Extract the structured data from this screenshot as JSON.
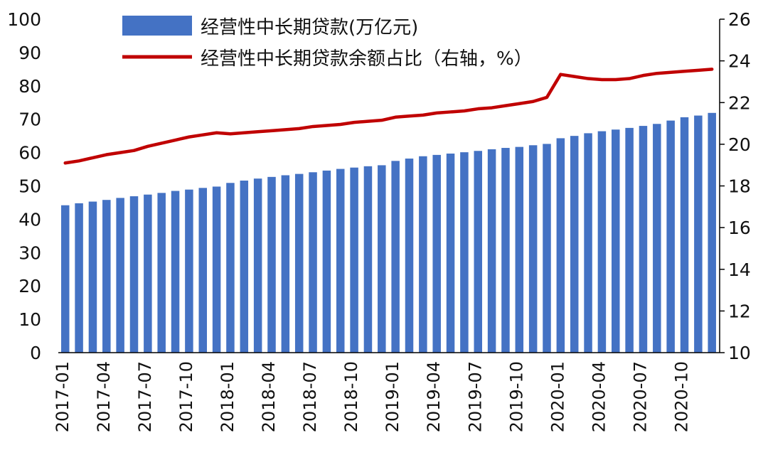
{
  "chart_data": {
    "type": "bar+line",
    "colors": {
      "bar": "#4472C4",
      "line": "#C00000",
      "axis": "#000000"
    },
    "legend": {
      "bar_label": "经营性中长期贷款(万亿元)",
      "line_label": "经营性中长期贷款余额占比（右轴，%）",
      "placement": "top-left"
    },
    "x": {
      "categories": [
        "2017-01",
        "2017-02",
        "2017-03",
        "2017-04",
        "2017-05",
        "2017-06",
        "2017-07",
        "2017-08",
        "2017-09",
        "2017-10",
        "2017-11",
        "2017-12",
        "2018-01",
        "2018-02",
        "2018-03",
        "2018-04",
        "2018-05",
        "2018-06",
        "2018-07",
        "2018-08",
        "2018-09",
        "2018-10",
        "2018-11",
        "2018-12",
        "2019-01",
        "2019-02",
        "2019-03",
        "2019-04",
        "2019-05",
        "2019-06",
        "2019-07",
        "2019-08",
        "2019-09",
        "2019-10",
        "2019-11",
        "2019-12",
        "2020-01",
        "2020-02",
        "2020-03",
        "2020-04",
        "2020-05",
        "2020-06",
        "2020-07",
        "2020-08",
        "2020-09",
        "2020-10",
        "2020-11",
        "2020-12"
      ],
      "tick_labels": [
        "2017-01",
        "2017-04",
        "2017-07",
        "2017-10",
        "2018-01",
        "2018-04",
        "2018-07",
        "2018-10",
        "2019-01",
        "2019-04",
        "2019-07",
        "2019-10",
        "2020-01",
        "2020-04",
        "2020-07",
        "2020-10"
      ]
    },
    "y_left": {
      "ylim": [
        0,
        100
      ],
      "ticks": [
        0,
        10,
        20,
        30,
        40,
        50,
        60,
        70,
        80,
        90,
        100
      ]
    },
    "y_right": {
      "ylim": [
        10,
        26
      ],
      "ticks": [
        10,
        12,
        14,
        16,
        18,
        20,
        22,
        24,
        26
      ]
    },
    "series": [
      {
        "name": "经营性中长期贷款(万亿元)",
        "axis": "left",
        "kind": "bar",
        "values": [
          44.2,
          44.8,
          45.3,
          45.8,
          46.4,
          46.9,
          47.4,
          47.9,
          48.5,
          48.9,
          49.4,
          49.8,
          50.9,
          51.6,
          52.2,
          52.7,
          53.2,
          53.6,
          54.1,
          54.6,
          55.1,
          55.5,
          55.9,
          56.2,
          57.5,
          58.2,
          58.9,
          59.3,
          59.7,
          60.1,
          60.5,
          61.0,
          61.4,
          61.7,
          62.2,
          62.6,
          64.3,
          65.0,
          65.8,
          66.4,
          66.9,
          67.4,
          68.0,
          68.6,
          69.6,
          70.6,
          71.1,
          71.9
        ]
      },
      {
        "name": "经营性中长期贷款余额占比（右轴，%）",
        "axis": "right",
        "kind": "line",
        "values": [
          19.1,
          19.2,
          19.35,
          19.5,
          19.6,
          19.7,
          19.9,
          20.05,
          20.2,
          20.35,
          20.45,
          20.55,
          20.5,
          20.55,
          20.6,
          20.65,
          20.7,
          20.75,
          20.85,
          20.9,
          20.95,
          21.05,
          21.1,
          21.15,
          21.3,
          21.35,
          21.4,
          21.5,
          21.55,
          21.6,
          21.7,
          21.75,
          21.85,
          21.95,
          22.05,
          22.25,
          23.35,
          23.25,
          23.15,
          23.1,
          23.1,
          23.15,
          23.3,
          23.4,
          23.45,
          23.5,
          23.55,
          23.6
        ]
      }
    ]
  }
}
